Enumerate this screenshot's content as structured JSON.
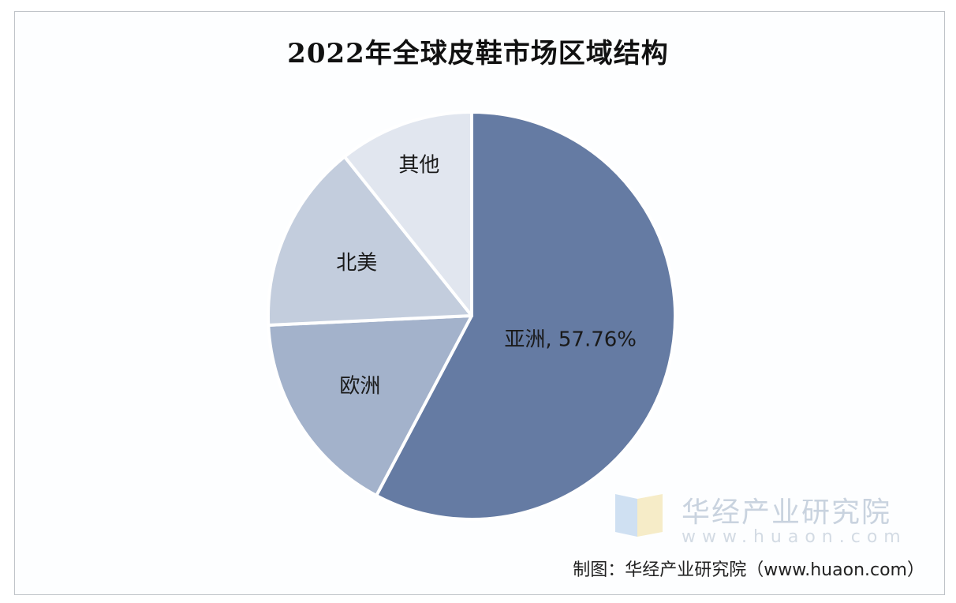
{
  "chart_data": {
    "type": "pie",
    "title": "2022年全球皮鞋市场区域结构",
    "start_angle_deg": 0,
    "direction": "clockwise",
    "slices": [
      {
        "label": "亚洲",
        "value": 57.76,
        "display": "亚洲, 57.76%",
        "color": "#657ba3",
        "label_color": "#1a1a1a"
      },
      {
        "label": "欧洲",
        "value": 16.5,
        "display": "欧洲",
        "color": "#a3b2cb",
        "label_color": "#1a1a1a"
      },
      {
        "label": "北美",
        "value": 15.0,
        "display": "北美",
        "color": "#c3cddd",
        "label_color": "#1a1a1a"
      },
      {
        "label": "其他",
        "value": 10.74,
        "display": "其他",
        "color": "#e1e6ef",
        "label_color": "#1a1a1a"
      }
    ]
  },
  "watermark": {
    "name": "华经产业研究院",
    "url": "www.huaon.com"
  },
  "source": {
    "text": "制图：华经产业研究院（www.huaon.com）"
  }
}
